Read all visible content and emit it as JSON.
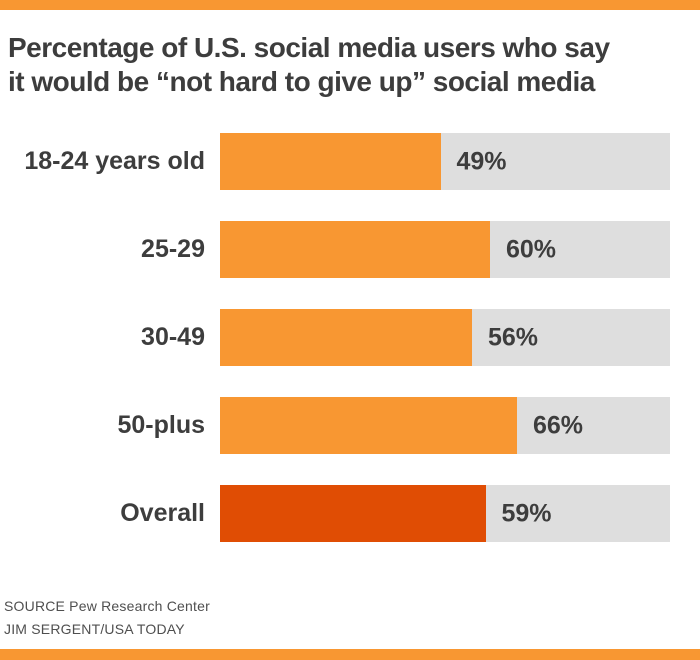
{
  "header": {
    "title_lines": [
      "Percentage of U.S. social media users who say",
      "it would be “not hard to give up” social media"
    ]
  },
  "chart_data": {
    "type": "bar",
    "orientation": "horizontal",
    "title": "Percentage of U.S. social media users who say it would be “not hard to give up” social media",
    "categories": [
      "18-24 years old",
      "25-29",
      "30-49",
      "50-plus",
      "Overall"
    ],
    "values": [
      49,
      60,
      56,
      66,
      59
    ],
    "value_labels": [
      "49%",
      "60%",
      "56%",
      "66%",
      "59%"
    ],
    "xlim": [
      0,
      100
    ],
    "unit": "percent",
    "highlight_category": "Overall",
    "grid": false,
    "legend": false,
    "value_label_position": "right-of-bar-inside-track"
  },
  "footer": {
    "source": "SOURCE Pew Research Center",
    "credit": "JIM SERGENT/USA TODAY"
  },
  "colors": {
    "bar_orange": "#F89732",
    "bar_highlight": "#E04D04",
    "track_gray": "#DEDEDE",
    "accent_strip": "#F89732",
    "title_text": "#3D3D3D",
    "footer_text": "#4F4F4F"
  }
}
